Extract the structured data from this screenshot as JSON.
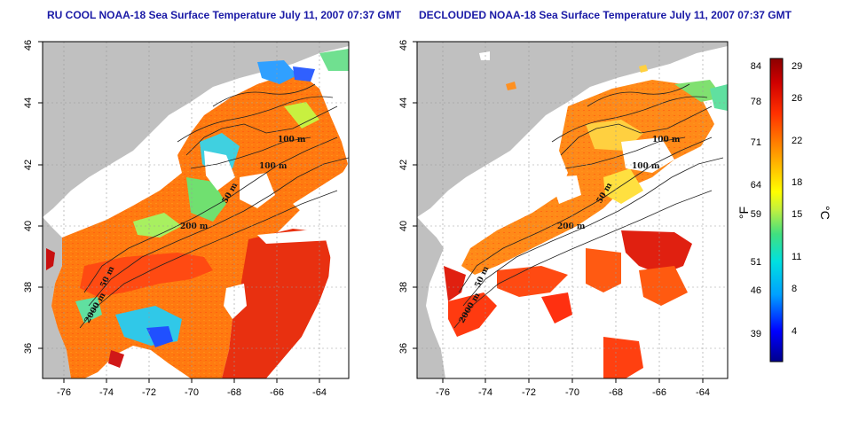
{
  "maps": [
    {
      "id": "left",
      "title": "RU COOL NOAA-18 Sea Surface Temperature July 11, 2007 07:37 GMT",
      "x_ticks": [
        "-76",
        "-74",
        "-72",
        "-70",
        "-68",
        "-66",
        "-64"
      ],
      "y_ticks": [
        "36",
        "38",
        "40",
        "42",
        "44",
        "46"
      ],
      "contours": [
        "100 m",
        "100 m",
        "50 m",
        "200 m",
        "50 m",
        "2000 m"
      ]
    },
    {
      "id": "right",
      "title": "DECLOUDED NOAA-18 Sea Surface Temperature July 11, 2007 07:37 GMT",
      "x_ticks": [
        "-76",
        "-74",
        "-72",
        "-70",
        "-68",
        "-66",
        "-64"
      ],
      "y_ticks": [
        "36",
        "38",
        "40",
        "42",
        "44",
        "46"
      ],
      "contours": [
        "100 m",
        "100 m",
        "50 m",
        "200 m",
        "50 m",
        "2000 m"
      ]
    }
  ],
  "colorbar": {
    "fahrenheit_label": "°F",
    "celsius_label": "°C",
    "fahrenheit_ticks": [
      "84",
      "78",
      "71",
      "64",
      "59",
      "51",
      "46",
      "39"
    ],
    "celsius_ticks": [
      "29",
      "26",
      "22",
      "18",
      "15",
      "11",
      "8",
      "4"
    ],
    "colors": [
      "#00008b",
      "#0000ff",
      "#00a0ff",
      "#00e0e0",
      "#40e080",
      "#c0f040",
      "#ffff00",
      "#ffc000",
      "#ff8000",
      "#ff3000",
      "#d00000",
      "#8b0000"
    ]
  },
  "colors": {
    "land": "#c0c0c0",
    "cloud": "#ffffff",
    "title": "#1a1aa6"
  }
}
